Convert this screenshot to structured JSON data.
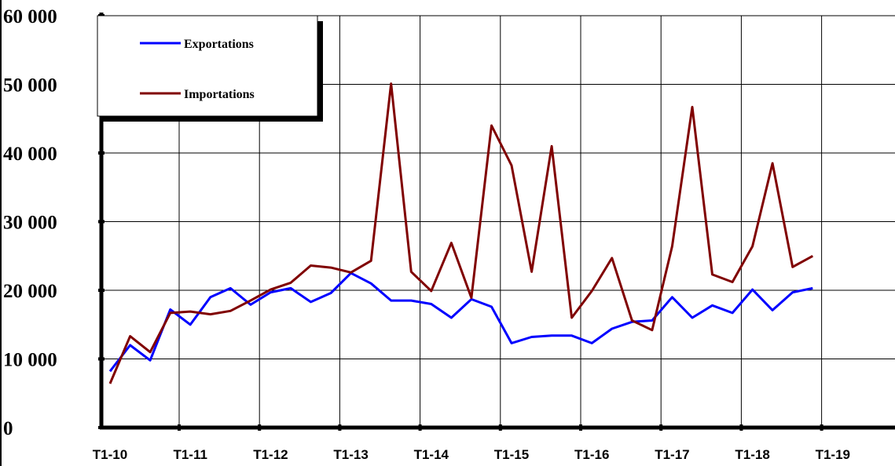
{
  "chart_data": {
    "type": "line",
    "title": "",
    "xlabel": "",
    "ylabel": "",
    "ylim": [
      0,
      60000
    ],
    "yticks": [
      0,
      10000,
      20000,
      30000,
      40000,
      50000,
      60000
    ],
    "ytick_labels": [
      "0",
      "10 000",
      "20 000",
      "30 000",
      "40 000",
      "50 000",
      "60 000"
    ],
    "xtick_labels": [
      "T1-10",
      "T1-11",
      "T1-12",
      "T1-13",
      "T1-14",
      "T1-15",
      "T1-16",
      "T1-17",
      "T1-18",
      "T1-19"
    ],
    "grid": true,
    "legend_position": "top-left",
    "series": [
      {
        "name": "Exportations",
        "color": "#0000ff",
        "values": [
          8200,
          12000,
          9800,
          17200,
          15000,
          19000,
          20300,
          17900,
          19700,
          20300,
          18300,
          19600,
          22500,
          21000,
          18500,
          18500,
          18000,
          16000,
          18700,
          17600,
          12300,
          13200,
          13400,
          13400,
          12300,
          14400,
          15400,
          15600,
          19000,
          16000,
          17800,
          16700,
          20100,
          17100,
          19700,
          20300
        ]
      },
      {
        "name": "Importations",
        "color": "#800000",
        "values": [
          6400,
          13300,
          11000,
          16700,
          16900,
          16500,
          17000,
          18500,
          20100,
          21100,
          23600,
          23300,
          22600,
          24300,
          50100,
          22700,
          19900,
          26900,
          18900,
          44000,
          38200,
          22700,
          41000,
          16000,
          19900,
          24700,
          15600,
          14200,
          26400,
          46700,
          22300,
          21200,
          26400,
          38500,
          23400,
          25000
        ]
      }
    ]
  }
}
